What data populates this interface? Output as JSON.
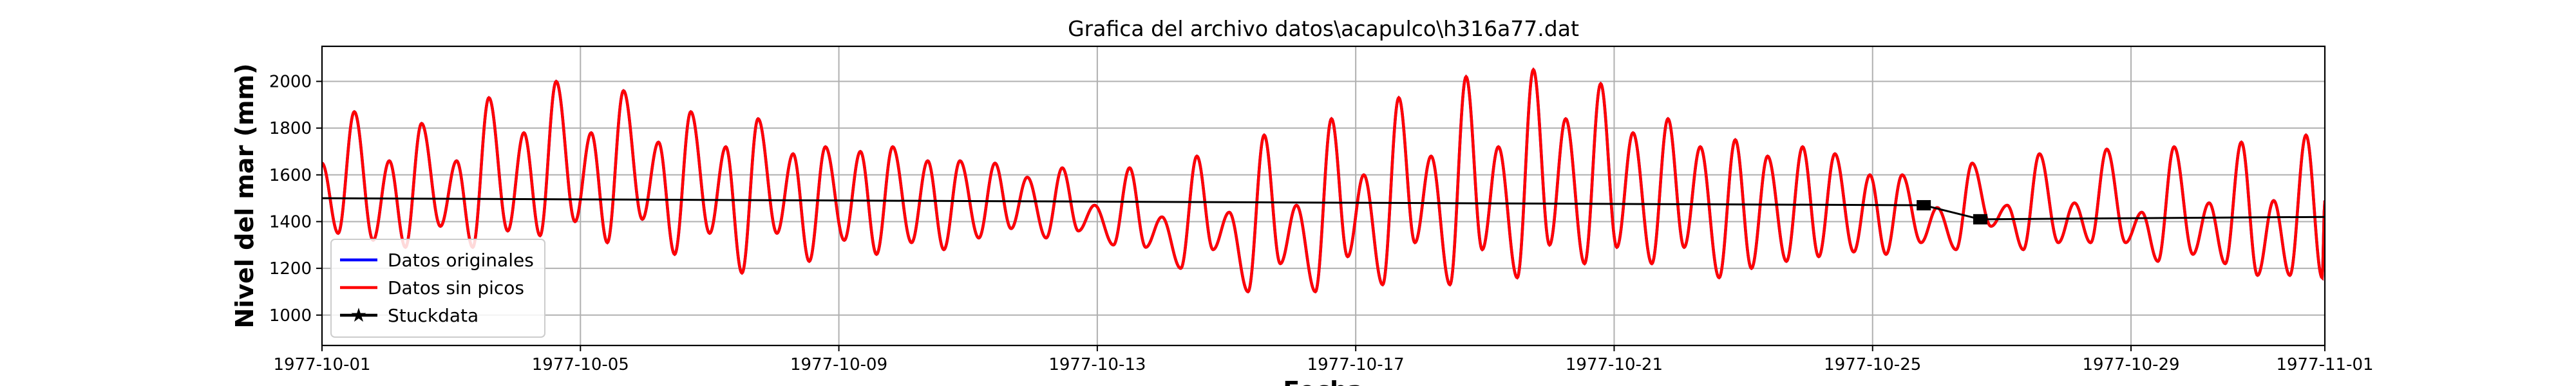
{
  "chart_data": {
    "type": "line",
    "title": "Grafica del archivo datos\\acapulco\\h316a77.dat",
    "xlabel": "Fecha",
    "ylabel": "Nivel del mar (mm)",
    "xlim": [
      "1977-10-01",
      "1977-11-01"
    ],
    "ylim": [
      870,
      2150
    ],
    "grid": true,
    "legend_position": "bottom-left",
    "x_ticks": [
      "1977-10-01",
      "1977-10-05",
      "1977-10-09",
      "1977-10-13",
      "1977-10-17",
      "1977-10-21",
      "1977-10-25",
      "1977-10-29",
      "1977-11-01"
    ],
    "y_ticks": [
      1000,
      1200,
      1400,
      1600,
      1800,
      2000
    ],
    "series_colors": {
      "Datos originales": "#0000ff",
      "Datos sin picos": "#ff0000",
      "Stuckdata": "#000000"
    },
    "series": [
      {
        "name": "Datos originales",
        "peaks": [
          [
            "1977-10-01 00:00",
            1650
          ],
          [
            "1977-10-01 06:00",
            1350
          ],
          [
            "1977-10-01 12:00",
            1870
          ],
          [
            "1977-10-01 19:00",
            1320
          ],
          [
            "1977-10-02 01:00",
            1660
          ],
          [
            "1977-10-02 07:00",
            1290
          ],
          [
            "1977-10-02 13:00",
            1820
          ],
          [
            "1977-10-02 20:00",
            1380
          ],
          [
            "1977-10-03 02:00",
            1660
          ],
          [
            "1977-10-03 08:00",
            1290
          ],
          [
            "1977-10-03 14:00",
            1930
          ],
          [
            "1977-10-03 21:00",
            1360
          ],
          [
            "1977-10-04 03:00",
            1780
          ],
          [
            "1977-10-04 09:00",
            1340
          ],
          [
            "1977-10-04 15:00",
            2000
          ],
          [
            "1977-10-04 22:00",
            1400
          ],
          [
            "1977-10-05 04:00",
            1780
          ],
          [
            "1977-10-05 10:00",
            1310
          ],
          [
            "1977-10-05 16:00",
            1960
          ],
          [
            "1977-10-05 23:00",
            1410
          ],
          [
            "1977-10-06 05:00",
            1740
          ],
          [
            "1977-10-06 11:00",
            1260
          ],
          [
            "1977-10-06 17:00",
            1870
          ],
          [
            "1977-10-07 00:00",
            1350
          ],
          [
            "1977-10-07 06:00",
            1720
          ],
          [
            "1977-10-07 12:00",
            1180
          ],
          [
            "1977-10-07 18:00",
            1840
          ],
          [
            "1977-10-08 01:00",
            1350
          ],
          [
            "1977-10-08 07:00",
            1690
          ],
          [
            "1977-10-08 13:00",
            1230
          ],
          [
            "1977-10-08 19:00",
            1720
          ],
          [
            "1977-10-09 02:00",
            1320
          ],
          [
            "1977-10-09 08:00",
            1700
          ],
          [
            "1977-10-09 14:00",
            1260
          ],
          [
            "1977-10-09 20:00",
            1720
          ],
          [
            "1977-10-10 03:00",
            1310
          ],
          [
            "1977-10-10 09:00",
            1660
          ],
          [
            "1977-10-10 15:00",
            1280
          ],
          [
            "1977-10-10 21:00",
            1660
          ],
          [
            "1977-10-11 04:00",
            1330
          ],
          [
            "1977-10-11 10:00",
            1650
          ],
          [
            "1977-10-11 16:00",
            1370
          ],
          [
            "1977-10-11 22:00",
            1590
          ],
          [
            "1977-10-12 05:00",
            1330
          ],
          [
            "1977-10-12 11:00",
            1630
          ],
          [
            "1977-10-12 17:00",
            1360
          ],
          [
            "1977-10-12 23:00",
            1470
          ],
          [
            "1977-10-13 06:00",
            1300
          ],
          [
            "1977-10-13 12:00",
            1630
          ],
          [
            "1977-10-13 18:00",
            1290
          ],
          [
            "1977-10-14 00:00",
            1420
          ],
          [
            "1977-10-14 07:00",
            1200
          ],
          [
            "1977-10-14 13:00",
            1680
          ],
          [
            "1977-10-14 19:00",
            1280
          ],
          [
            "1977-10-15 01:00",
            1440
          ],
          [
            "1977-10-15 08:00",
            1100
          ],
          [
            "1977-10-15 14:00",
            1770
          ],
          [
            "1977-10-15 20:00",
            1220
          ],
          [
            "1977-10-16 02:00",
            1470
          ],
          [
            "1977-10-16 09:00",
            1100
          ],
          [
            "1977-10-16 15:00",
            1840
          ],
          [
            "1977-10-16 21:00",
            1250
          ],
          [
            "1977-10-17 03:00",
            1600
          ],
          [
            "1977-10-17 10:00",
            1130
          ],
          [
            "1977-10-17 16:00",
            1930
          ],
          [
            "1977-10-17 22:00",
            1310
          ],
          [
            "1977-10-18 04:00",
            1680
          ],
          [
            "1977-10-18 11:00",
            1130
          ],
          [
            "1977-10-18 17:00",
            2020
          ],
          [
            "1977-10-18 23:00",
            1280
          ],
          [
            "1977-10-19 05:00",
            1720
          ],
          [
            "1977-10-19 12:00",
            1160
          ],
          [
            "1977-10-19 18:00",
            2050
          ],
          [
            "1977-10-20 00:00",
            1300
          ],
          [
            "1977-10-20 06:00",
            1840
          ],
          [
            "1977-10-20 13:00",
            1220
          ],
          [
            "1977-10-20 19:00",
            1990
          ],
          [
            "1977-10-21 01:00",
            1290
          ],
          [
            "1977-10-21 07:00",
            1780
          ],
          [
            "1977-10-21 14:00",
            1220
          ],
          [
            "1977-10-21 20:00",
            1840
          ],
          [
            "1977-10-22 02:00",
            1290
          ],
          [
            "1977-10-22 08:00",
            1720
          ],
          [
            "1977-10-22 15:00",
            1160
          ],
          [
            "1977-10-22 21:00",
            1750
          ],
          [
            "1977-10-23 03:00",
            1200
          ],
          [
            "1977-10-23 09:00",
            1680
          ],
          [
            "1977-10-23 16:00",
            1230
          ],
          [
            "1977-10-23 22:00",
            1720
          ],
          [
            "1977-10-24 04:00",
            1250
          ],
          [
            "1977-10-24 10:00",
            1690
          ],
          [
            "1977-10-24 17:00",
            1270
          ],
          [
            "1977-10-24 23:00",
            1600
          ],
          [
            "1977-10-25 05:00",
            1260
          ],
          [
            "1977-10-25 11:00",
            1600
          ],
          [
            "1977-10-25 18:00",
            1310
          ],
          [
            "1977-10-26 00:00",
            1460
          ],
          [
            "1977-10-26 07:00",
            1280
          ],
          [
            "1977-10-26 13:00",
            1650
          ],
          [
            "1977-10-26 20:00",
            1380
          ],
          [
            "1977-10-27 02:00",
            1470
          ],
          [
            "1977-10-27 08:00",
            1280
          ],
          [
            "1977-10-27 14:00",
            1690
          ],
          [
            "1977-10-27 21:00",
            1310
          ],
          [
            "1977-10-28 03:00",
            1480
          ],
          [
            "1977-10-28 09:00",
            1310
          ],
          [
            "1977-10-28 15:00",
            1710
          ],
          [
            "1977-10-28 22:00",
            1310
          ],
          [
            "1977-10-29 04:00",
            1440
          ],
          [
            "1977-10-29 10:00",
            1230
          ],
          [
            "1977-10-29 16:00",
            1720
          ],
          [
            "1977-10-29 23:00",
            1260
          ],
          [
            "1977-10-30 05:00",
            1480
          ],
          [
            "1977-10-30 11:00",
            1220
          ],
          [
            "1977-10-30 17:00",
            1740
          ],
          [
            "1977-10-30 23:00",
            1170
          ],
          [
            "1977-10-31 05:00",
            1490
          ],
          [
            "1977-10-31 11:00",
            1170
          ],
          [
            "1977-10-31 17:00",
            1770
          ],
          [
            "1977-10-31 23:00",
            1160
          ],
          [
            "1977-11-01 00:00",
            1490
          ]
        ]
      },
      {
        "name": "Datos sin picos",
        "same_as": "Datos originales"
      },
      {
        "name": "Stuckdata",
        "points": [
          [
            "1977-10-01 00:00",
            1500
          ],
          [
            "1977-10-25 19:00",
            1470
          ],
          [
            "1977-10-26 16:00",
            1410
          ],
          [
            "1977-11-01 00:00",
            1420
          ]
        ],
        "stuck_markers": [
          [
            "1977-10-25 19:00",
            1470
          ],
          [
            "1977-10-26 16:00",
            1410
          ]
        ]
      }
    ]
  }
}
